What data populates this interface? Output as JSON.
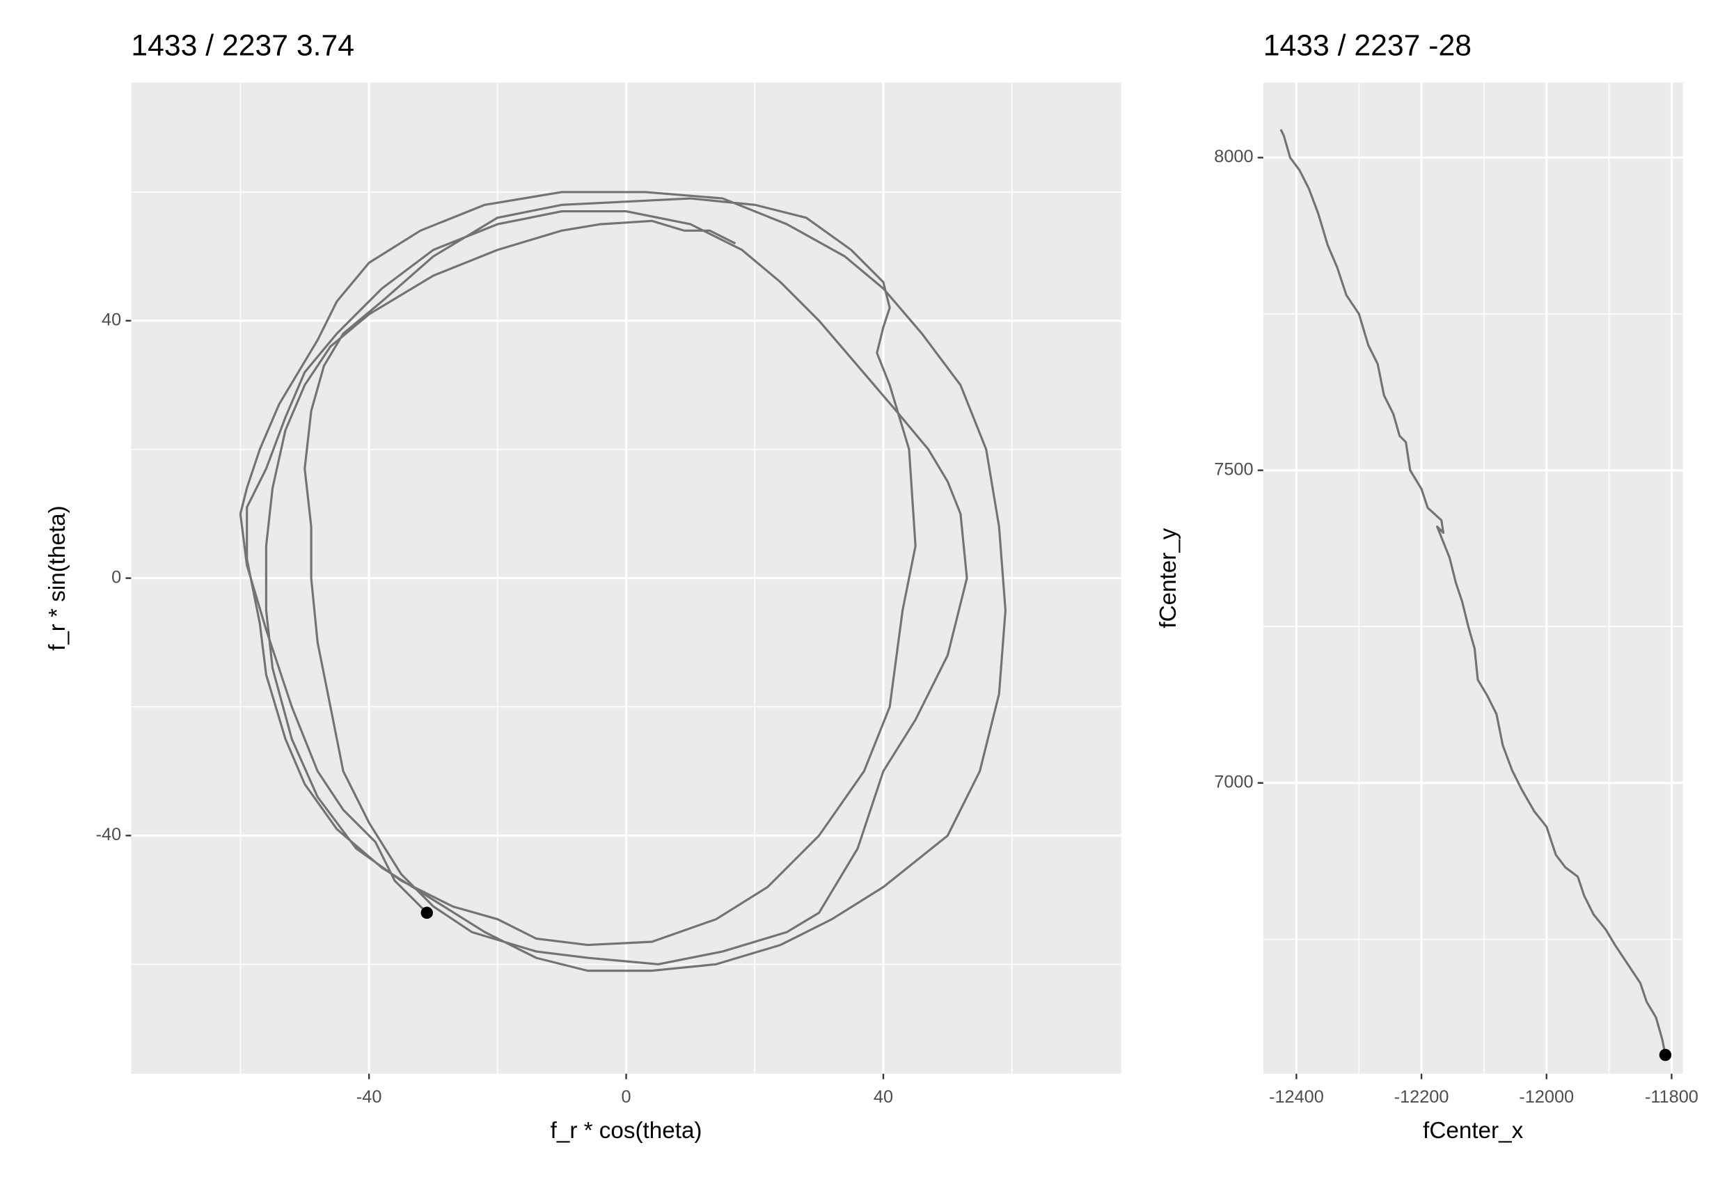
{
  "chart_data": [
    {
      "type": "line",
      "title": "1433 / 2237 3.74",
      "x_label": "f_r * cos(theta)",
      "y_label": "f_r * sin(theta)",
      "xlim": [
        -77,
        77
      ],
      "ylim": [
        -77,
        77
      ],
      "xticks": [
        -40,
        0,
        40
      ],
      "yticks": [
        -40,
        0,
        40
      ],
      "minor_xticks": [
        -60,
        -20,
        20,
        60
      ],
      "minor_yticks": [
        -60,
        -20,
        20,
        60
      ],
      "grid": true,
      "point_color": "#000000",
      "series": [
        {
          "color": "#737373",
          "x": [
            17,
            13,
            9,
            4,
            -4,
            -10,
            -20,
            -30,
            -40,
            -46,
            -50,
            -53,
            -55,
            -56,
            -56,
            -55,
            -52,
            -48,
            -42,
            -35,
            -27,
            -20,
            -14,
            -6,
            4,
            14,
            22,
            30,
            37,
            41,
            43,
            45,
            44,
            41,
            39,
            40,
            41,
            40,
            35,
            28,
            20,
            10,
            0,
            -10,
            -20,
            -30,
            -38,
            -44,
            -47,
            -49,
            -50,
            -49,
            -49,
            -48,
            -46,
            -44,
            -40,
            -35,
            -30,
            -24,
            -14,
            -6,
            5,
            15,
            25,
            30,
            36,
            40,
            45,
            50,
            53,
            52,
            50,
            47,
            42,
            36,
            30,
            24,
            18,
            10,
            0,
            -10,
            -20,
            -30,
            -38,
            -45,
            -50,
            -53,
            -56,
            -59,
            -59,
            -57,
            -56,
            -53,
            -50,
            -45,
            -38,
            -30,
            -22,
            -14,
            -6,
            4,
            14,
            24,
            32,
            40,
            50,
            55,
            58,
            59,
            58,
            56,
            52,
            46,
            40,
            34,
            25,
            15,
            3,
            -10,
            -22,
            -32,
            -40,
            -45,
            -48,
            -51,
            -54,
            -57,
            -59,
            -60,
            -59,
            -56,
            -52,
            -48,
            -44,
            -39,
            -36,
            -33,
            -31
          ],
          "y": [
            52,
            54,
            54,
            55.5,
            55,
            54,
            51,
            47,
            41,
            36,
            30,
            23,
            14,
            5,
            -5,
            -14,
            -25,
            -34,
            -42,
            -47,
            -51,
            -53,
            -56,
            -57,
            -56.5,
            -53,
            -48,
            -40,
            -30,
            -20,
            -5,
            5,
            20,
            30,
            35,
            39,
            42,
            46,
            51,
            56,
            58,
            59,
            58.5,
            58,
            56,
            50,
            43,
            38,
            33,
            26,
            17,
            8,
            0,
            -10,
            -20,
            -30,
            -38,
            -46,
            -51,
            -55,
            -58,
            -59,
            -60,
            -58,
            -55,
            -52,
            -42,
            -30,
            -22,
            -12,
            0,
            10,
            15,
            20,
            26,
            33,
            40,
            46,
            51,
            55,
            57,
            57,
            55,
            51,
            45,
            38,
            32,
            25,
            17,
            11,
            3,
            -7,
            -15,
            -25,
            -32,
            -39,
            -45,
            -50,
            -55,
            -59,
            -61,
            -61,
            -60,
            -57,
            -53,
            -48,
            -40,
            -30,
            -18,
            -5,
            8,
            20,
            30,
            38,
            45,
            50,
            55,
            59,
            60,
            60,
            58,
            54,
            49,
            43,
            37,
            32,
            27,
            20,
            14,
            10,
            2,
            -8,
            -20,
            -30,
            -36,
            -41,
            -47,
            -50,
            -52
          ]
        }
      ]
    },
    {
      "type": "line",
      "title": "1433 / 2237 -28",
      "x_label": "fCenter_x",
      "y_label": "fCenter_y",
      "xlim": [
        -12453,
        -11782
      ],
      "ylim": [
        6535,
        8120
      ],
      "xticks": [
        -12400,
        -12200,
        -12000,
        -11800
      ],
      "yticks": [
        7000,
        7500,
        8000
      ],
      "minor_xticks": [
        -12300,
        -12100,
        -11900
      ],
      "minor_yticks": [
        6750,
        7250,
        7750
      ],
      "grid": true,
      "point_color": "#000000",
      "series": [
        {
          "color": "#737373",
          "x": [
            -12425,
            -12420,
            -12410,
            -12395,
            -12380,
            -12365,
            -12350,
            -12335,
            -12320,
            -12300,
            -12285,
            -12270,
            -12260,
            -12245,
            -12235,
            -12225,
            -12218,
            -12200,
            -12190,
            -12168,
            -12165,
            -12175,
            -12155,
            -12145,
            -12135,
            -12125,
            -12115,
            -12110,
            -12095,
            -12080,
            -12070,
            -12055,
            -12040,
            -12020,
            -12000,
            -11985,
            -11970,
            -11950,
            -11940,
            -11925,
            -11905,
            -11890,
            -11870,
            -11850,
            -11840,
            -11825,
            -11815,
            -11810
          ],
          "y": [
            8045,
            8035,
            8000,
            7980,
            7950,
            7910,
            7860,
            7825,
            7780,
            7750,
            7700,
            7670,
            7620,
            7590,
            7555,
            7545,
            7500,
            7470,
            7440,
            7420,
            7400,
            7410,
            7360,
            7320,
            7290,
            7250,
            7215,
            7165,
            7140,
            7110,
            7060,
            7020,
            6990,
            6955,
            6930,
            6885,
            6865,
            6850,
            6820,
            6790,
            6765,
            6740,
            6710,
            6680,
            6650,
            6625,
            6590,
            6565
          ]
        }
      ]
    }
  ]
}
